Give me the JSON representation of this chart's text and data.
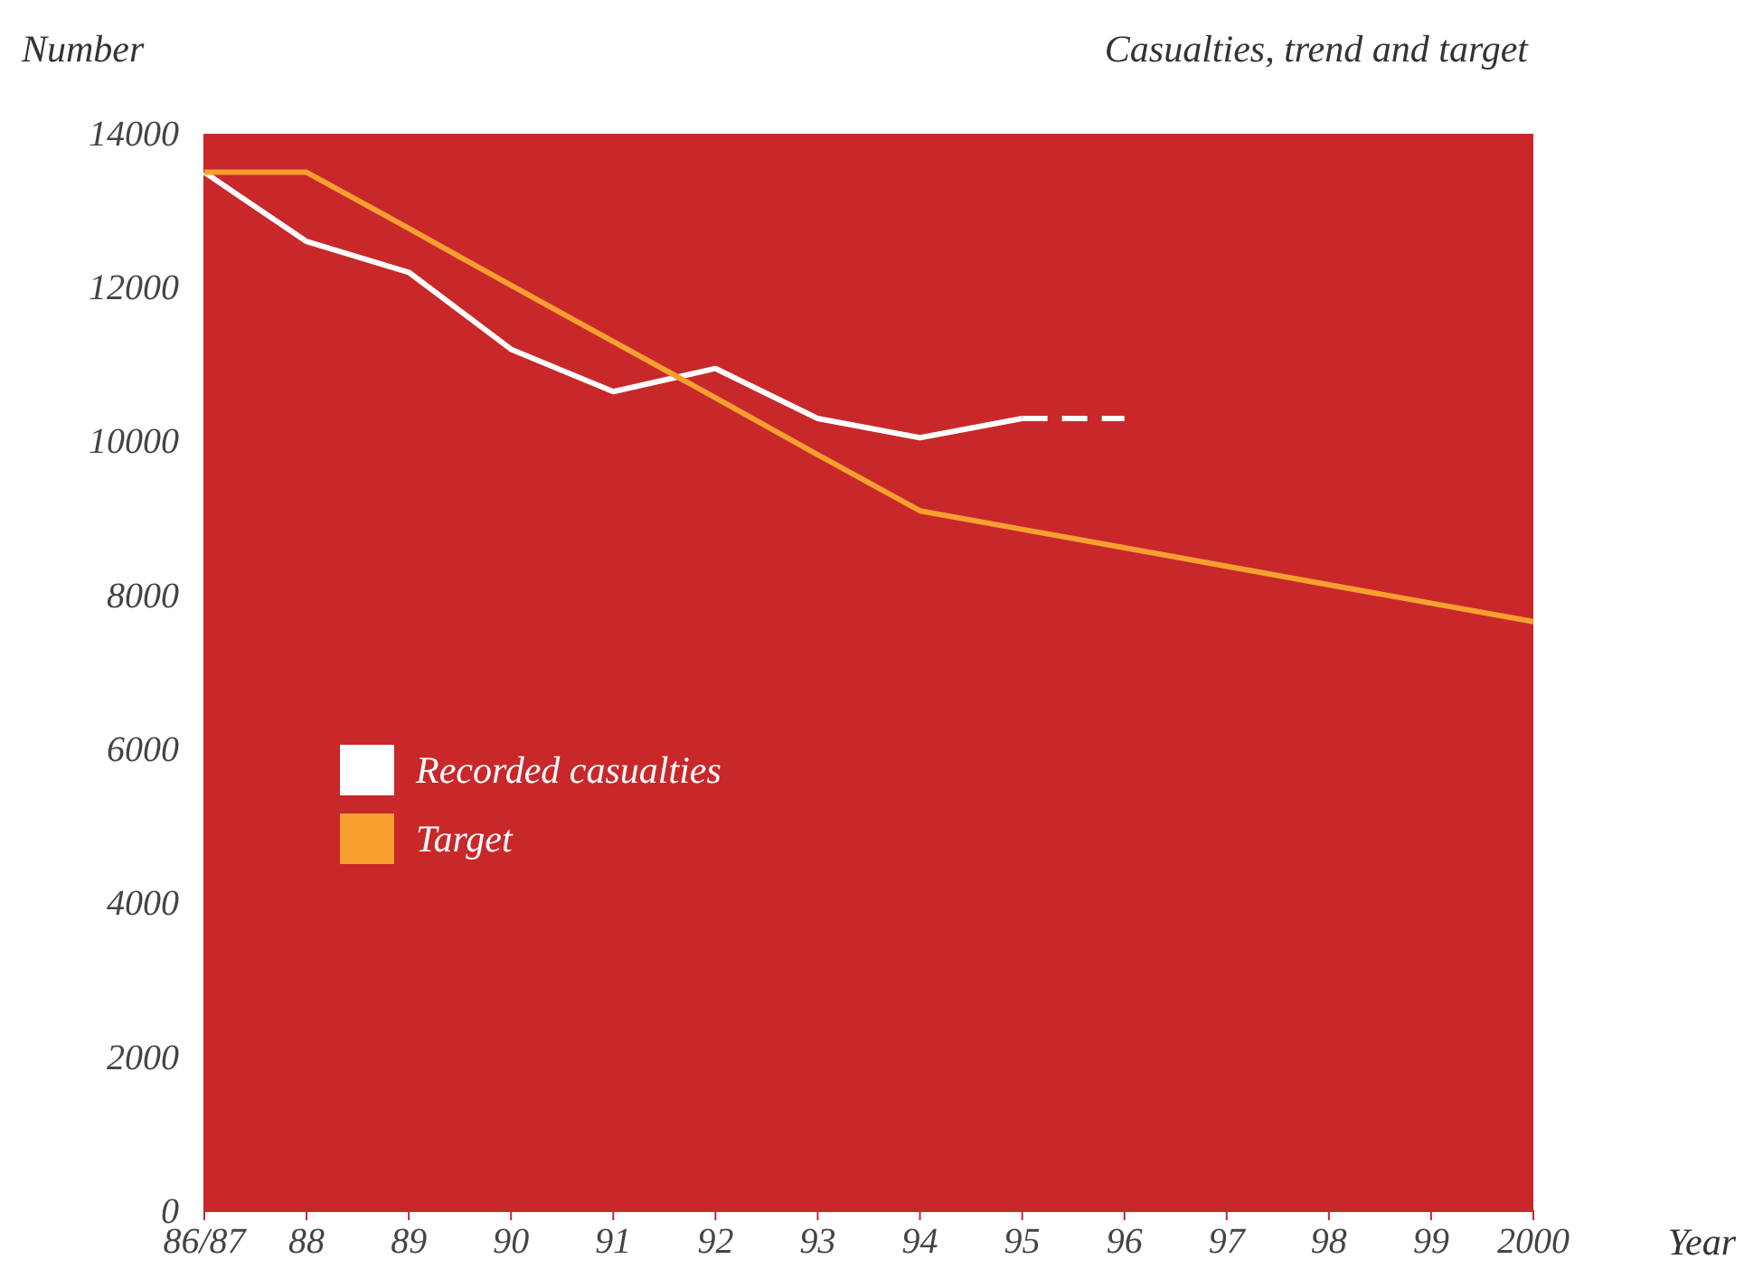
{
  "chart_data": {
    "type": "line",
    "title": "Casualties, trend and target",
    "ylabel": "Number",
    "xlabel": "Year",
    "categories": [
      "86/87",
      "88",
      "89",
      "90",
      "91",
      "92",
      "93",
      "94",
      "95",
      "96",
      "97",
      "98",
      "99",
      "2000"
    ],
    "series": [
      {
        "name": "Recorded casualties",
        "color": "#ffffff",
        "line_style": "solid",
        "values": [
          13500,
          12600,
          12200,
          11200,
          10650,
          10950,
          10300,
          10050,
          10300,
          null,
          null,
          null,
          null,
          null
        ]
      },
      {
        "color": "#ffffff",
        "line_style": "dashed",
        "values": [
          null,
          null,
          null,
          null,
          null,
          null,
          null,
          null,
          10300,
          10300,
          null,
          null,
          null,
          null
        ]
      },
      {
        "name": "Target",
        "color": "#f7a030",
        "line_style": "solid",
        "values": [
          13500,
          13500,
          12770,
          12030,
          11300,
          10570,
          9830,
          9100,
          8860,
          8620,
          8380,
          8140,
          7900,
          7660
        ]
      }
    ],
    "ylim": [
      0,
      14000
    ],
    "yticks": [
      0,
      2000,
      4000,
      6000,
      8000,
      10000,
      12000,
      14000
    ],
    "grid": false,
    "legend": "center",
    "marker": "none"
  }
}
